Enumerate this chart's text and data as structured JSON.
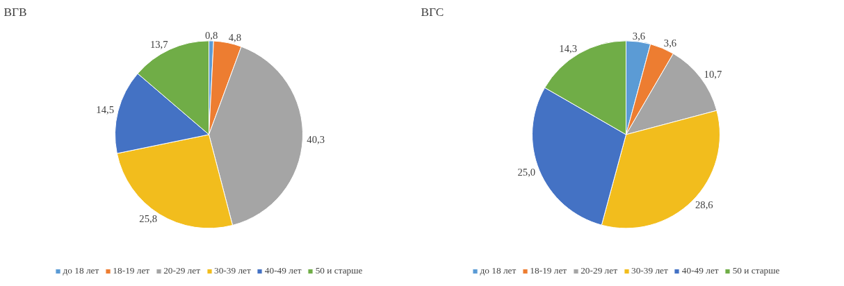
{
  "chart_data": [
    {
      "type": "pie",
      "title": "ВГВ",
      "categories": [
        "до 18 лет",
        "18-19 лет",
        "20-29 лет",
        "30-39 лет",
        "40-49 лет",
        "50 и старше"
      ],
      "values": [
        0.8,
        4.8,
        40.3,
        25.8,
        14.5,
        13.7
      ],
      "value_labels": [
        "0,8",
        "4,8",
        "40,3",
        "25,8",
        "14,5",
        "13,7"
      ],
      "colors": [
        "#5b9bd5",
        "#ed7d31",
        "#a5a5a5",
        "#f2bd1d",
        "#4472c4",
        "#70ad47"
      ],
      "legend": "bottom"
    },
    {
      "type": "pie",
      "title": "ВГС",
      "categories": [
        "до 18 лет",
        "18-19 лет",
        "20-29 лет",
        "30-39 лет",
        "40-49 лет",
        "50 и старше"
      ],
      "values": [
        3.6,
        3.6,
        10.7,
        28.6,
        25.0,
        14.3
      ],
      "value_labels": [
        "3,6",
        "3,6",
        "10,7",
        "28,6",
        "25,0",
        "14,3"
      ],
      "colors": [
        "#5b9bd5",
        "#ed7d31",
        "#a5a5a5",
        "#f2bd1d",
        "#4472c4",
        "#70ad47"
      ],
      "legend": "bottom"
    }
  ]
}
